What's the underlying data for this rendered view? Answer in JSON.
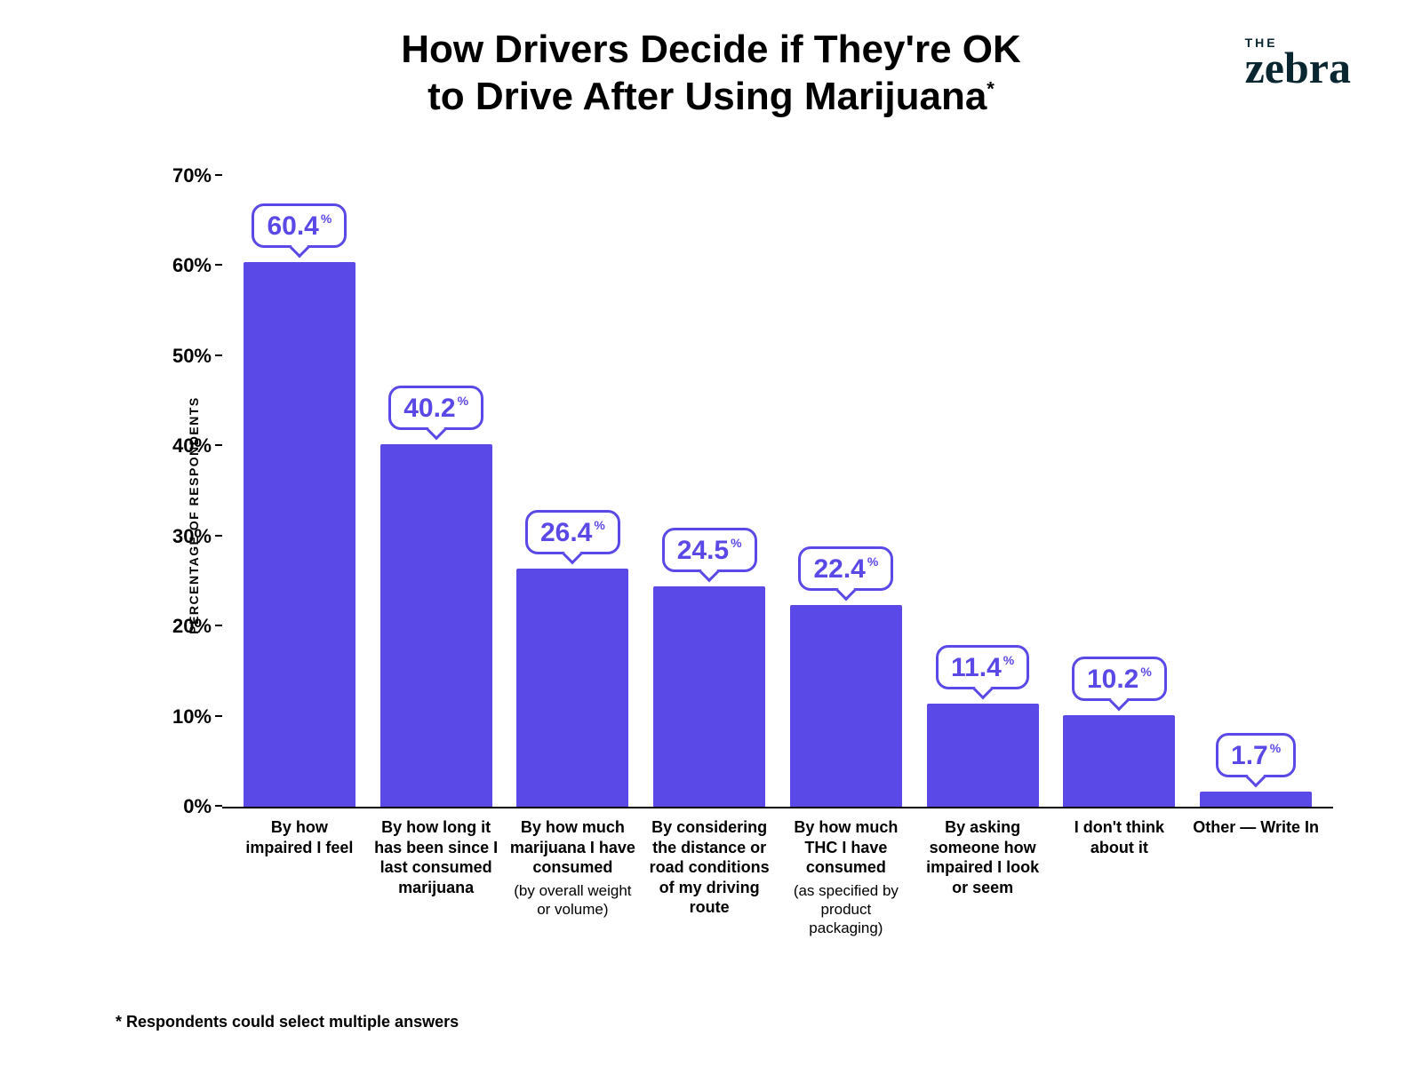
{
  "logo": {
    "top": "THE",
    "main": "zebra",
    "color": "#0a2630"
  },
  "title_line1": "How Drivers Decide if They're OK",
  "title_line2": "to Drive After Using Marijuana",
  "title_super": "*",
  "footnote": "* Respondents could select multiple answers",
  "chart": {
    "type": "bar",
    "y_axis_title": "PERCENTAGE OF RESPONDENTS",
    "ylim_max": 70,
    "ylim_min": 0,
    "ytick_step": 10,
    "tick_suffix": "%",
    "background_color": "#ffffff",
    "axis_color": "#000000",
    "bar_color": "#5b49e7",
    "bubble_border_color": "#5b49e7",
    "bubble_text_color": "#5b49e7",
    "title_fontsize": 44,
    "tick_fontsize": 22,
    "xlabel_fontsize": 18,
    "bubble_fontsize": 30,
    "bar_width_pct": 82,
    "bars": [
      {
        "value": 60.4,
        "label": "By how impaired I feel",
        "sub": ""
      },
      {
        "value": 40.2,
        "label": "By how long it has been since I last consumed marijuana",
        "sub": ""
      },
      {
        "value": 26.4,
        "label": "By how much marijuana I have consumed",
        "sub": "(by overall weight or volume)"
      },
      {
        "value": 24.5,
        "label": "By considering the distance or road conditions of my driving route",
        "sub": ""
      },
      {
        "value": 22.4,
        "label": "By how much THC I have consumed",
        "sub": "(as specified by product packaging)"
      },
      {
        "value": 11.4,
        "label": "By asking someone how impaired I look or seem",
        "sub": ""
      },
      {
        "value": 10.2,
        "label": "I don't think about it",
        "sub": ""
      },
      {
        "value": 1.7,
        "label": "Other — Write In",
        "sub": ""
      }
    ]
  }
}
